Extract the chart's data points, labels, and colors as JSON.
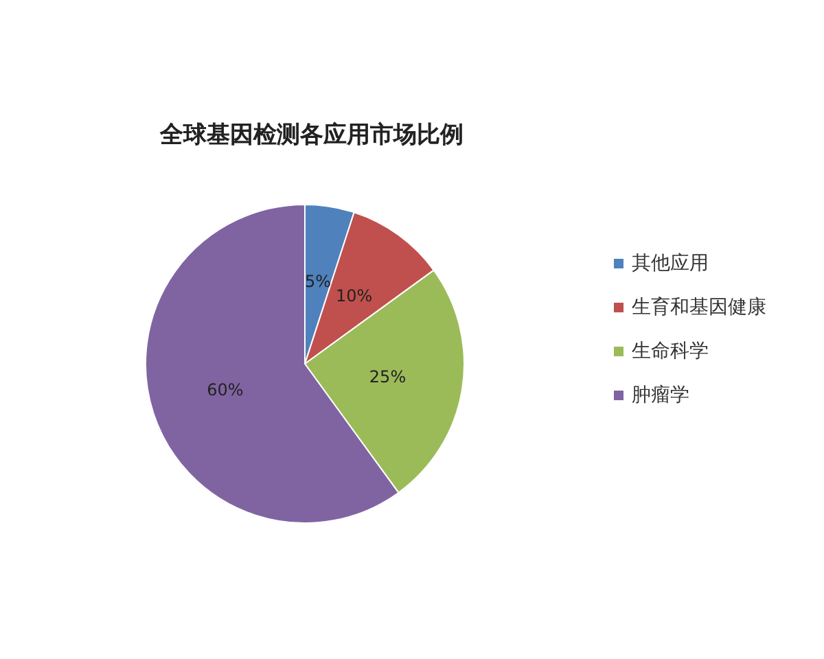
{
  "chart_data": {
    "type": "pie",
    "title": "全球基因检测各应用市场比例",
    "categories": [
      "其他应用",
      "生育和基因健康",
      "生命科学",
      "肿瘤学"
    ],
    "values": [
      5,
      10,
      25,
      60
    ],
    "colors": [
      "#4f81bd",
      "#c0504d",
      "#9bbb59",
      "#8064a2"
    ],
    "value_labels": [
      "5%",
      "10%",
      "25%",
      "60%"
    ],
    "legend": "right"
  }
}
